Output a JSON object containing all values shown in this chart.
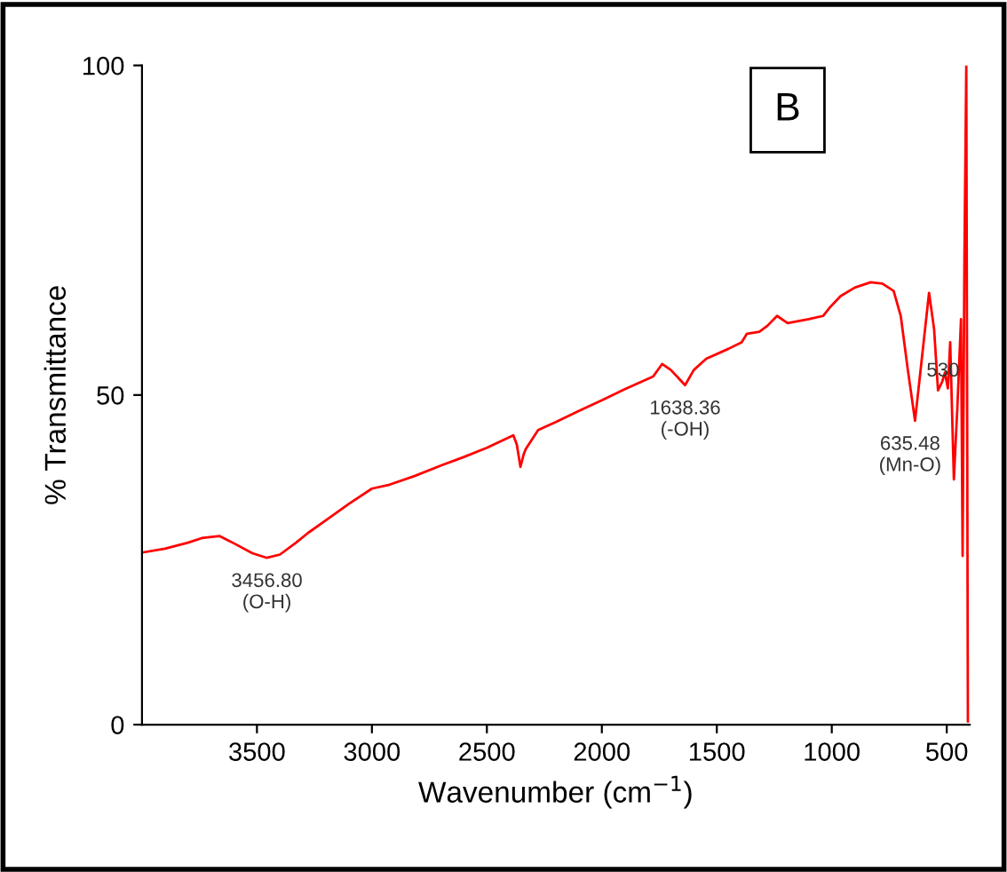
{
  "chart_data": {
    "type": "line",
    "xlabel": "Wavenumber (cm$^{−1}$)",
    "ylabel": "% Transmittance",
    "xlim": [
      4000,
      400
    ],
    "ylim": [
      0,
      100
    ],
    "xticks": [
      3500,
      3000,
      2500,
      2000,
      1500,
      1000,
      500
    ],
    "yticks": [
      0,
      50,
      100
    ],
    "grid": false,
    "legend": false,
    "marker": "none",
    "line_style": "solid",
    "series": [
      {
        "color": "#ff0000",
        "x": [
          4000,
          3900,
          3800,
          3740,
          3662,
          3600,
          3520,
          3456.8,
          3400,
          3330,
          3277,
          3200,
          3100,
          3000,
          2923,
          2815,
          2700,
          2600,
          2500,
          2385,
          2370,
          2354,
          2340,
          2331,
          2277,
          2200,
          2100,
          2000,
          1900,
          1777,
          1738,
          1700,
          1638,
          1600,
          1546,
          1450,
          1392,
          1369,
          1315,
          1280,
          1238,
          1192,
          1100,
          1038,
          1008,
          962,
          900,
          831,
          780,
          731,
          700,
          670,
          638,
          610,
          577,
          555,
          538,
          520,
          508,
          495,
          485,
          469,
          454,
          438,
          431,
          423,
          415,
          408
        ],
        "values": [
          26.1,
          26.7,
          27.6,
          28.3,
          28.6,
          27.5,
          26.0,
          25.3,
          25.8,
          27.6,
          29.1,
          31.0,
          33.5,
          35.8,
          36.4,
          37.7,
          39.3,
          40.6,
          42.0,
          43.9,
          42.5,
          39.1,
          41.0,
          41.8,
          44.7,
          45.9,
          47.6,
          49.2,
          50.9,
          52.8,
          54.7,
          53.8,
          51.5,
          53.8,
          55.5,
          57.0,
          58.0,
          59.3,
          59.6,
          60.5,
          62.0,
          60.9,
          61.5,
          62.0,
          63.3,
          65.0,
          66.3,
          67.1,
          66.9,
          65.8,
          62.0,
          54.0,
          46.1,
          55.0,
          65.5,
          60.0,
          50.7,
          52.0,
          53.4,
          51.0,
          58.0,
          37.2,
          48.0,
          61.5,
          25.6,
          71.4,
          100,
          0.5
        ]
      }
    ],
    "annotations": [
      {
        "text": "3456.80\n(O-H)",
        "x": 3456.8,
        "y": 25.3
      },
      {
        "text": "1638.36\n(-OH)",
        "x": 1638,
        "y": 51.5
      },
      {
        "text": "635.48\n(Mn-O)",
        "x": 638,
        "y": 46.1
      },
      {
        "text": "530",
        "x": 538,
        "y": 50.7
      },
      "B"
    ]
  }
}
